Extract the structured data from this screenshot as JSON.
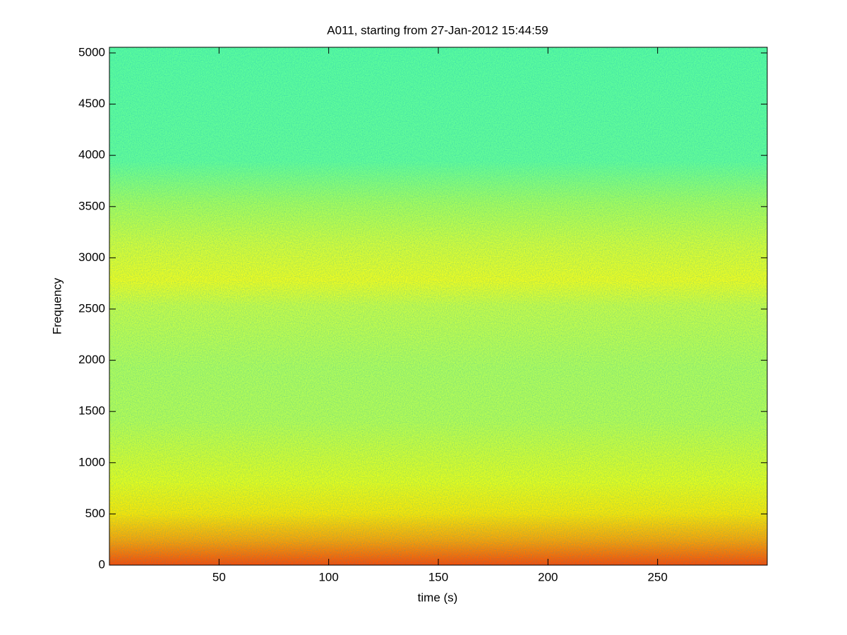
{
  "chart_data": {
    "type": "spectrogram",
    "title": "A011, starting from 27-Jan-2012 15:44:59",
    "x_label": "time (s)",
    "y_label": "Frequency",
    "xlim": [
      0,
      300
    ],
    "ylim": [
      0,
      5055
    ],
    "xticks": [
      50,
      100,
      150,
      200,
      250
    ],
    "yticks": [
      0,
      500,
      1000,
      1500,
      2000,
      2500,
      3000,
      3500,
      4000,
      4500,
      5000
    ],
    "grid": false
  }
}
